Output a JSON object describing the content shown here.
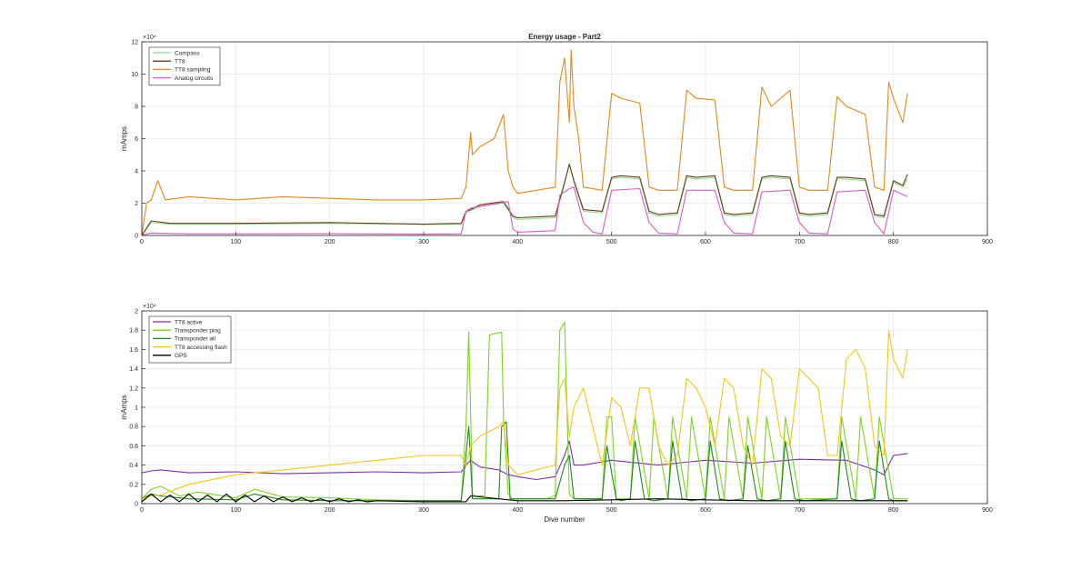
{
  "chart_data": [
    {
      "type": "line",
      "title": "Energy usage - Part2",
      "xlabel": "",
      "ylabel": "mAmps",
      "xlim": [
        0,
        900
      ],
      "ylim": [
        0,
        120000
      ],
      "exponent_label": "×10⁴",
      "xticks": [
        0,
        100,
        200,
        300,
        400,
        500,
        600,
        700,
        800,
        900
      ],
      "xtick_labels": [
        "0",
        "100",
        "200",
        "300",
        "400",
        "500",
        "600",
        "700",
        "800",
        "900"
      ],
      "yticks": [
        0,
        20000,
        40000,
        60000,
        80000,
        100000,
        120000
      ],
      "ytick_labels": [
        "0",
        "2",
        "4",
        "6",
        "8",
        "10",
        "12"
      ],
      "grid": true,
      "legend_position": "top-left",
      "series": [
        {
          "name": "Compass",
          "color": "#8fe08f",
          "x": [
            0,
            10,
            30,
            100,
            200,
            300,
            340,
            345,
            350,
            360,
            385,
            395,
            400,
            440,
            450,
            455,
            460,
            470,
            490,
            500,
            510,
            530,
            540,
            550,
            570,
            580,
            590,
            610,
            620,
            630,
            650,
            660,
            670,
            690,
            700,
            710,
            730,
            740,
            750,
            770,
            780,
            790,
            800,
            810,
            815
          ],
          "y": [
            0,
            8000,
            7000,
            7000,
            7500,
            6800,
            7000,
            14000,
            15500,
            18000,
            20000,
            11000,
            10000,
            11000,
            32000,
            45000,
            33000,
            15000,
            14000,
            35000,
            36000,
            35000,
            14000,
            12000,
            13000,
            36000,
            35000,
            36000,
            13000,
            12000,
            13000,
            35000,
            36000,
            35000,
            13000,
            12000,
            13000,
            35000,
            35000,
            34000,
            12000,
            11000,
            33000,
            30000,
            35000
          ]
        },
        {
          "name": "TT8",
          "color": "#6b3a1a",
          "x": [
            0,
            10,
            30,
            100,
            200,
            300,
            340,
            345,
            350,
            360,
            385,
            395,
            400,
            440,
            450,
            455,
            460,
            470,
            490,
            500,
            510,
            530,
            540,
            550,
            570,
            580,
            590,
            610,
            620,
            630,
            650,
            660,
            670,
            690,
            700,
            710,
            730,
            740,
            750,
            770,
            780,
            790,
            800,
            810,
            815
          ],
          "y": [
            0,
            9000,
            7500,
            7500,
            8000,
            7000,
            7500,
            15000,
            16000,
            19000,
            21000,
            12000,
            11000,
            12000,
            33000,
            44000,
            34000,
            16000,
            15000,
            36000,
            37000,
            36000,
            15000,
            13000,
            14000,
            37000,
            36000,
            37000,
            14000,
            13000,
            14000,
            36000,
            37000,
            36000,
            14000,
            13000,
            14000,
            36000,
            36000,
            35000,
            13000,
            12000,
            34000,
            31000,
            38000
          ]
        },
        {
          "name": "TT8 sampling",
          "color": "#e8861a",
          "x": [
            0,
            5,
            10,
            17,
            25,
            50,
            100,
            150,
            200,
            250,
            300,
            340,
            345,
            350,
            352,
            360,
            375,
            385,
            390,
            395,
            400,
            420,
            440,
            445,
            450,
            455,
            457,
            460,
            465,
            470,
            490,
            500,
            510,
            530,
            540,
            550,
            570,
            580,
            590,
            610,
            620,
            630,
            650,
            660,
            670,
            690,
            700,
            710,
            730,
            740,
            750,
            770,
            780,
            790,
            795,
            800,
            810,
            815
          ],
          "y": [
            0,
            20000,
            22000,
            34000,
            22000,
            24000,
            22000,
            24000,
            23000,
            22000,
            22000,
            23000,
            30000,
            64000,
            50000,
            55000,
            60000,
            75000,
            40000,
            30000,
            26000,
            28000,
            30000,
            95000,
            110000,
            70000,
            115000,
            80000,
            60000,
            30000,
            28000,
            88000,
            85000,
            82000,
            30000,
            28000,
            28000,
            90000,
            85000,
            84000,
            30000,
            28000,
            28000,
            92000,
            80000,
            90000,
            30000,
            28000,
            28000,
            86000,
            80000,
            75000,
            30000,
            28000,
            95000,
            85000,
            70000,
            88000
          ]
        },
        {
          "name": "Analog circuits",
          "color": "#e05bc7",
          "x": [
            0,
            10,
            50,
            100,
            200,
            300,
            340,
            345,
            350,
            360,
            390,
            395,
            400,
            440,
            445,
            455,
            460,
            470,
            480,
            490,
            500,
            530,
            540,
            550,
            570,
            580,
            610,
            620,
            630,
            650,
            660,
            690,
            700,
            710,
            730,
            740,
            770,
            780,
            790,
            800,
            815
          ],
          "y": [
            0,
            1500,
            1000,
            1000,
            1200,
            800,
            1000,
            15000,
            17000,
            18000,
            21000,
            4000,
            2000,
            3000,
            25000,
            29000,
            30000,
            8000,
            2000,
            1000,
            28000,
            29000,
            8000,
            1500,
            1000,
            28000,
            28000,
            8000,
            1500,
            1000,
            27000,
            28000,
            8000,
            1500,
            1000,
            27000,
            28000,
            8000,
            1000,
            28000,
            24000
          ]
        }
      ]
    },
    {
      "type": "line",
      "title": "",
      "xlabel": "Dive number",
      "ylabel": "mAmps",
      "xlim": [
        0,
        900
      ],
      "ylim": [
        0,
        20000
      ],
      "exponent_label": "×10⁴",
      "xticks": [
        0,
        100,
        200,
        300,
        400,
        500,
        600,
        700,
        800,
        900
      ],
      "xtick_labels": [
        "0",
        "100",
        "200",
        "300",
        "400",
        "500",
        "600",
        "700",
        "800",
        "900"
      ],
      "yticks": [
        0,
        2000,
        4000,
        6000,
        8000,
        10000,
        12000,
        14000,
        16000,
        18000,
        20000
      ],
      "ytick_labels": [
        "0",
        "0.2",
        "0.4",
        "0.6",
        "0.8",
        "1",
        "1.2",
        "1.4",
        "1.6",
        "1.8",
        "2"
      ],
      "grid": true,
      "legend_position": "top-left",
      "series": [
        {
          "name": "TT8 active",
          "color": "#7e2fa8",
          "x": [
            0,
            10,
            20,
            50,
            100,
            150,
            200,
            250,
            300,
            340,
            345,
            350,
            360,
            380,
            390,
            400,
            420,
            440,
            450,
            455,
            460,
            470,
            500,
            550,
            600,
            650,
            700,
            750,
            780,
            790,
            800,
            815
          ],
          "y": [
            3200,
            3400,
            3500,
            3200,
            3300,
            3100,
            3200,
            3300,
            3200,
            3300,
            4000,
            4500,
            3800,
            3500,
            3000,
            2800,
            2500,
            2800,
            5000,
            6500,
            4000,
            4000,
            4500,
            4000,
            4500,
            4200,
            4600,
            4500,
            3500,
            3000,
            5000,
            5200
          ]
        },
        {
          "name": "Transponder ping",
          "color": "#7ed321",
          "x": [
            0,
            10,
            20,
            40,
            60,
            100,
            120,
            150,
            200,
            250,
            300,
            340,
            345,
            348,
            352,
            355,
            365,
            370,
            383,
            385,
            390,
            394,
            400,
            430,
            440,
            445,
            450,
            455,
            460,
            470,
            490,
            495,
            500,
            505,
            520,
            525,
            540,
            545,
            560,
            565,
            580,
            585,
            600,
            605,
            620,
            625,
            640,
            645,
            660,
            665,
            680,
            685,
            700,
            710,
            740,
            745,
            760,
            765,
            780,
            785,
            800,
            810,
            815
          ],
          "y": [
            500,
            1500,
            1800,
            800,
            1200,
            600,
            1500,
            700,
            600,
            400,
            300,
            300,
            8000,
            17800,
            1000,
            800,
            800,
            17500,
            17800,
            9000,
            1000,
            500,
            500,
            500,
            800,
            18000,
            18800,
            1000,
            500,
            500,
            500,
            9000,
            9000,
            500,
            500,
            9000,
            500,
            9000,
            500,
            9000,
            500,
            9000,
            500,
            9000,
            500,
            9000,
            500,
            9000,
            500,
            9000,
            500,
            9000,
            500,
            500,
            500,
            9000,
            500,
            9000,
            500,
            9000,
            500,
            500,
            500
          ]
        },
        {
          "name": "Transponder all",
          "color": "#1f8a1f",
          "x": [
            0,
            10,
            20,
            50,
            100,
            120,
            150,
            200,
            300,
            340,
            345,
            348,
            352,
            360,
            380,
            383,
            388,
            392,
            400,
            440,
            450,
            455,
            460,
            470,
            490,
            495,
            505,
            510,
            520,
            525,
            535,
            545,
            560,
            565,
            575,
            585,
            600,
            605,
            615,
            625,
            640,
            645,
            655,
            665,
            680,
            685,
            695,
            705,
            740,
            745,
            755,
            765,
            780,
            785,
            795,
            800,
            815
          ],
          "y": [
            500,
            1000,
            800,
            500,
            400,
            1000,
            400,
            300,
            300,
            300,
            5000,
            8000,
            500,
            500,
            500,
            8000,
            8500,
            500,
            500,
            500,
            4000,
            5000,
            500,
            500,
            500,
            6000,
            500,
            300,
            500,
            6500,
            500,
            300,
            500,
            6500,
            500,
            300,
            500,
            6500,
            500,
            300,
            500,
            6000,
            500,
            300,
            500,
            6500,
            500,
            300,
            500,
            6500,
            500,
            300,
            500,
            6500,
            500,
            300,
            300
          ]
        },
        {
          "name": "TT8 accessing flash",
          "color": "#f5c518",
          "x": [
            0,
            10,
            20,
            50,
            100,
            150,
            200,
            250,
            300,
            340,
            345,
            350,
            360,
            380,
            385,
            390,
            400,
            420,
            440,
            445,
            450,
            455,
            460,
            470,
            480,
            490,
            500,
            510,
            520,
            530,
            540,
            550,
            560,
            570,
            580,
            590,
            600,
            610,
            620,
            630,
            640,
            650,
            660,
            670,
            680,
            690,
            700,
            710,
            720,
            730,
            740,
            750,
            760,
            770,
            780,
            790,
            795,
            800,
            810,
            815
          ],
          "y": [
            500,
            800,
            900,
            2000,
            3000,
            3500,
            4000,
            4500,
            5000,
            5000,
            4000,
            6000,
            7000,
            8000,
            8500,
            4000,
            3000,
            3500,
            4000,
            12000,
            13000,
            7000,
            10000,
            12000,
            8000,
            4000,
            11000,
            10000,
            6000,
            12000,
            12000,
            6000,
            4000,
            5000,
            13000,
            12000,
            10000,
            6000,
            13000,
            12000,
            6000,
            4000,
            14000,
            13000,
            7000,
            6000,
            14000,
            13000,
            12000,
            5000,
            5000,
            15000,
            16000,
            14000,
            6000,
            5000,
            18000,
            15000,
            13000,
            16000
          ]
        },
        {
          "name": "GPS",
          "color": "#000000",
          "x": [
            0,
            10,
            20,
            30,
            40,
            50,
            60,
            70,
            80,
            90,
            100,
            110,
            120,
            130,
            140,
            150,
            160,
            170,
            180,
            190,
            200,
            210,
            220,
            230,
            240,
            250,
            300,
            345,
            350,
            400,
            450,
            500,
            550,
            600,
            650,
            700,
            750,
            800,
            815
          ],
          "y": [
            200,
            1000,
            200,
            900,
            200,
            1000,
            200,
            900,
            200,
            1000,
            200,
            900,
            200,
            800,
            200,
            700,
            200,
            600,
            200,
            500,
            200,
            500,
            200,
            400,
            200,
            300,
            200,
            200,
            800,
            300,
            300,
            400,
            500,
            400,
            300,
            300,
            300,
            300,
            300
          ]
        }
      ]
    }
  ]
}
